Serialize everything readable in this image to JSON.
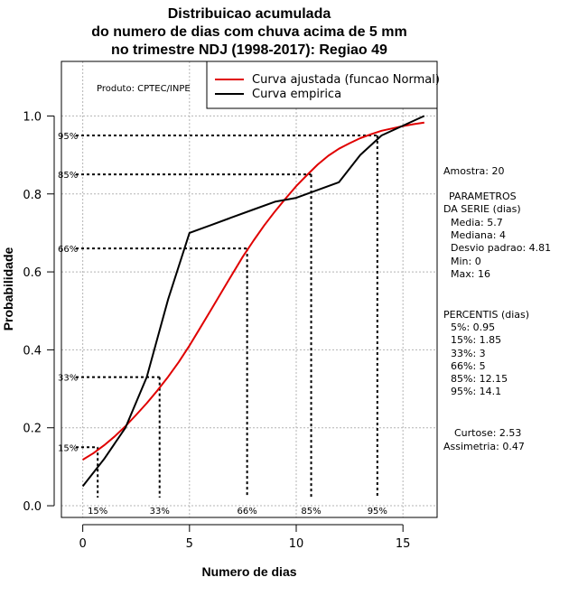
{
  "chart_data": {
    "type": "line",
    "title": [
      "Distribuicao acumulada",
      "do numero de dias com chuva acima de 5 mm",
      "no trimestre NDJ (1998-2017): Regiao 49"
    ],
    "xlabel": "Numero de dias",
    "ylabel": "Probabilidade",
    "xlim": [
      -1,
      16.6
    ],
    "ylim": [
      -0.03,
      1.14
    ],
    "x_ticks": [
      0,
      5,
      10,
      15
    ],
    "y_ticks": [
      0.0,
      0.2,
      0.4,
      0.6,
      0.8,
      1.0
    ],
    "x_tick_labels": [
      "0",
      "5",
      "10",
      "15"
    ],
    "y_tick_labels": [
      "0.0",
      "0.2",
      "0.4",
      "0.6",
      "0.8",
      "1.0"
    ],
    "grid": true,
    "legend_position": "top-right",
    "producer_label": "Produto: CPTEC/INPE",
    "series": [
      {
        "name": "Curva ajustada (funcao Normal)",
        "color": "#e00000",
        "x": [
          0,
          0.5,
          1,
          1.5,
          2,
          2.5,
          3,
          3.5,
          4,
          4.5,
          5,
          5.5,
          6,
          6.5,
          7,
          7.5,
          8,
          8.5,
          9,
          9.5,
          10,
          10.5,
          11,
          11.5,
          12,
          12.5,
          13,
          13.5,
          14,
          14.5,
          15,
          15.5,
          16
        ],
        "values": [
          0.118,
          0.135,
          0.155,
          0.178,
          0.204,
          0.233,
          0.263,
          0.296,
          0.331,
          0.369,
          0.411,
          0.456,
          0.502,
          0.548,
          0.594,
          0.639,
          0.68,
          0.719,
          0.755,
          0.788,
          0.82,
          0.848,
          0.875,
          0.898,
          0.916,
          0.93,
          0.943,
          0.953,
          0.962,
          0.968,
          0.974,
          0.979,
          0.983
        ]
      },
      {
        "name": "Curva empirica",
        "color": "#000000",
        "x": [
          0,
          1,
          2,
          3,
          4,
          5,
          6,
          7,
          8,
          9,
          10,
          11,
          12,
          13,
          14,
          16
        ],
        "values": [
          0.05,
          0.12,
          0.2,
          0.33,
          0.53,
          0.7,
          0.72,
          0.74,
          0.76,
          0.78,
          0.79,
          0.81,
          0.83,
          0.9,
          0.95,
          1.0
        ]
      }
    ],
    "percentiles": [
      {
        "label": "15%",
        "x": 0.7,
        "y": 0.15
      },
      {
        "label": "33%",
        "x": 3.6,
        "y": 0.33
      },
      {
        "label": "66%",
        "x": 7.7,
        "y": 0.66
      },
      {
        "label": "85%",
        "x": 10.7,
        "y": 0.85
      },
      {
        "label": "95%",
        "x": 13.8,
        "y": 0.95
      }
    ],
    "side_panel": [
      "Amostra: 20",
      "PARAMETROS",
      "DA SERIE (dias)",
      "Media: 5.7",
      "Mediana: 4",
      "Desvio padrao: 4.81",
      "Min: 0",
      "Max: 16",
      "PERCENTIS (dias)",
      "5%: 0.95",
      "15%: 1.85",
      "33%: 3",
      "66%: 5",
      "85%: 12.15",
      "95%: 14.1",
      "Curtose: 2.53",
      "Assimetria: 0.47"
    ]
  }
}
